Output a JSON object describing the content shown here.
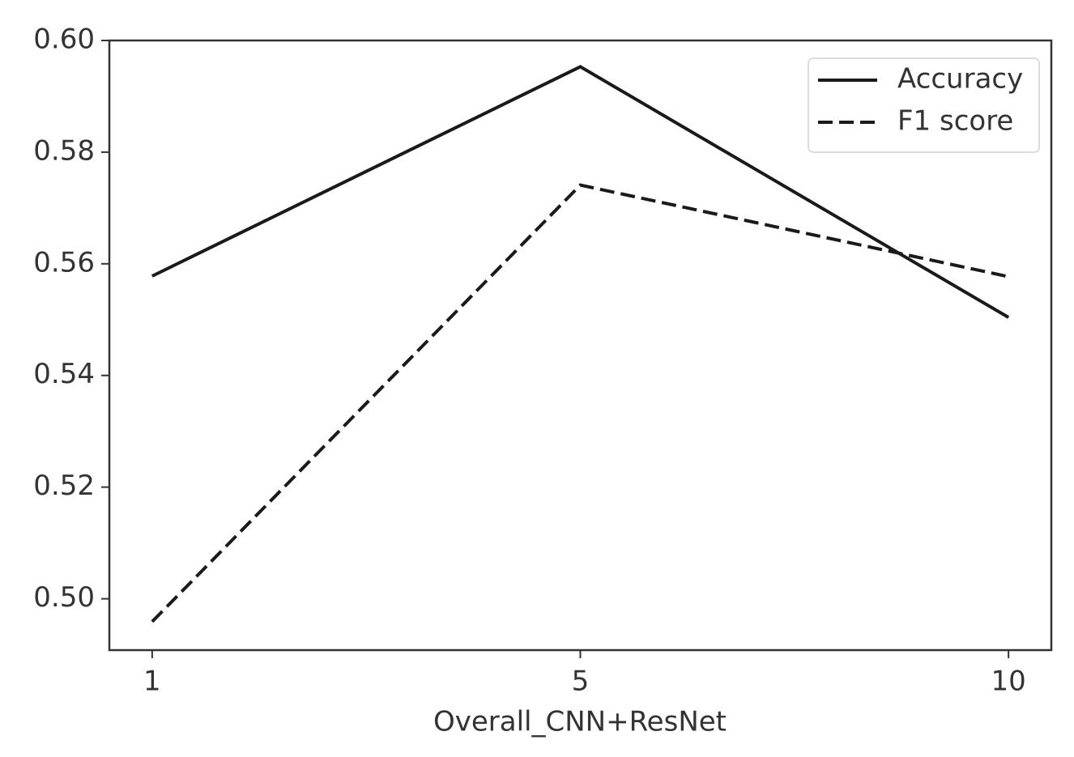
{
  "chart_data": {
    "type": "line",
    "x_label": "Overall_CNN+ResNet",
    "categories": [
      "1",
      "5",
      "10"
    ],
    "series": [
      {
        "name": "Accuracy",
        "color": "#1a1a1a",
        "linestyle": "solid",
        "values": [
          0.5578,
          0.5953,
          0.5504
        ]
      },
      {
        "name": "F1 score",
        "color": "#1a1a1a",
        "linestyle": "dashed",
        "values": [
          0.4959,
          0.5741,
          0.5577
        ]
      }
    ],
    "ylim": [
      0.4908,
      0.6
    ],
    "yticks": [
      {
        "value": 0.5,
        "label": "0.50"
      },
      0.52,
      0.54,
      0.56,
      0.58,
      {
        "value": 0.6,
        "label": "0.60"
      }
    ],
    "legend": "upper right",
    "grid": false
  }
}
